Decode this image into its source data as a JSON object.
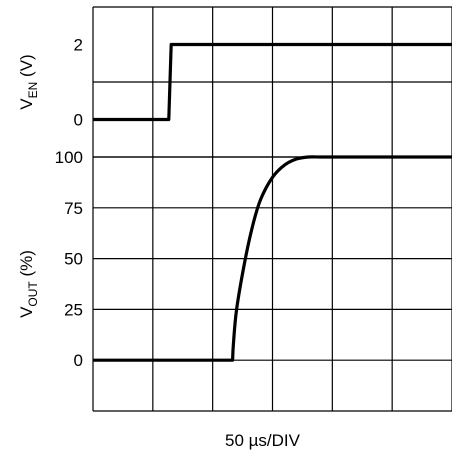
{
  "chart_data": {
    "type": "line",
    "grid": true,
    "x_axis": {
      "label": "50 µs/DIV",
      "range": [
        0,
        450
      ],
      "divisions": 6
    },
    "panels": [
      {
        "id": "ven",
        "ylabel": {
          "main": "V",
          "sub": "EN",
          "suffix": " (V)"
        },
        "yticks": [
          2,
          0
        ],
        "ylim": [
          -1,
          3
        ],
        "series": [
          {
            "x": [
              0,
              95,
              98,
              450
            ],
            "y": [
              0,
              0,
              2,
              2
            ]
          }
        ]
      },
      {
        "id": "vout",
        "ylabel": {
          "main": "V",
          "sub": "OUT",
          "suffix": " (%)"
        },
        "yticks": [
          100,
          75,
          50,
          25,
          0
        ],
        "ylim": [
          -25,
          100
        ],
        "series": [
          {
            "x": [
              0,
              175,
              176,
              180,
              190,
              200,
              210,
              225,
              240,
              255,
              270,
              285,
              300,
              450
            ],
            "y": [
              0,
              0,
              8,
              25,
              48,
              66,
              79,
              90,
              96,
              99,
              100,
              100,
              100,
              100
            ]
          }
        ]
      }
    ],
    "line_color": "#000000",
    "grid_color": "#000000"
  }
}
